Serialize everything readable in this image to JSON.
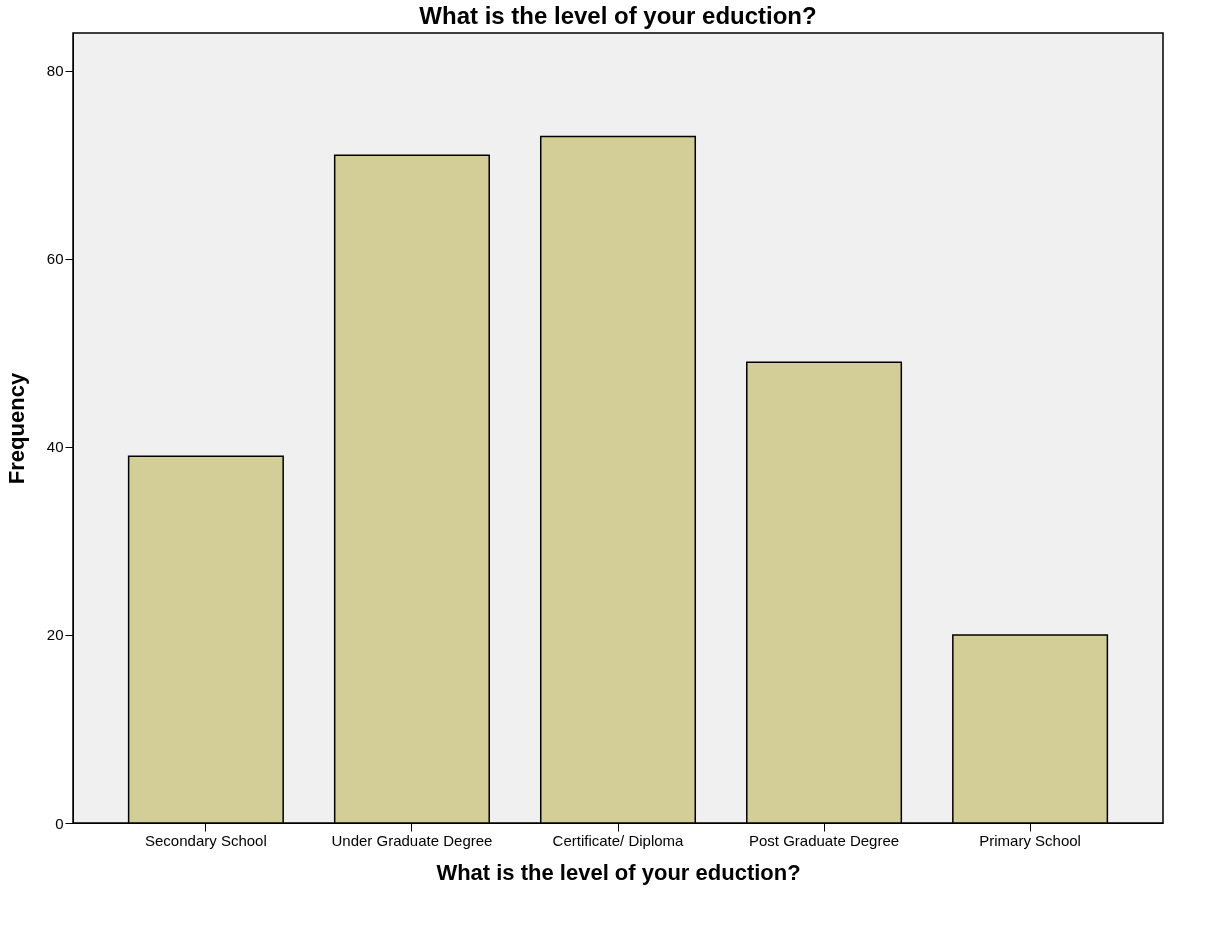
{
  "chart_data": {
    "type": "bar",
    "title": "What is the level of your eduction?",
    "xlabel": "What is the level of your eduction?",
    "ylabel": "Frequency",
    "categories": [
      "Secondary School",
      "Under Graduate Degree",
      "Certificate/ Diploma",
      "Post Graduate Degree",
      "Primary School"
    ],
    "values": [
      39,
      71,
      73,
      49,
      20
    ],
    "color": "#d3ce97",
    "ylim": [
      0,
      84
    ],
    "yticks": [
      0,
      20,
      40,
      60,
      80
    ],
    "grid": false,
    "legend": false
  }
}
